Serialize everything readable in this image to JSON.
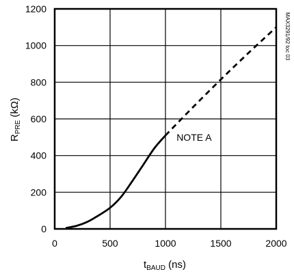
{
  "chart_data": {
    "type": "line",
    "xlabel": {
      "main": "t",
      "sub": "BAUD",
      "unit": " (ns)"
    },
    "ylabel": {
      "main": "R",
      "sub": "PRE",
      "unit": " (kΩ)"
    },
    "xlim": [
      0,
      2000
    ],
    "ylim": [
      0,
      1200
    ],
    "x_ticks": [
      "0",
      "500",
      "1000",
      "1500",
      "2000"
    ],
    "y_ticks": [
      "0",
      "200",
      "400",
      "600",
      "800",
      "1000",
      "1200"
    ],
    "grid": true,
    "series": [
      {
        "style": "solid",
        "x": [
          100,
          200,
          300,
          400,
          500,
          600,
          700,
          800,
          900,
          1000
        ],
        "y": [
          5,
          17,
          40,
          75,
          115,
          175,
          260,
          350,
          440,
          510
        ]
      },
      {
        "style": "dashed",
        "x": [
          1000,
          1250,
          1500,
          1750,
          2000
        ],
        "y": [
          510,
          665,
          815,
          960,
          1100
        ]
      }
    ],
    "annotations": [
      {
        "text": "NOTE A",
        "x": 1100,
        "y": 480
      }
    ],
    "side_label": "MAX3291/92 toc 03"
  }
}
